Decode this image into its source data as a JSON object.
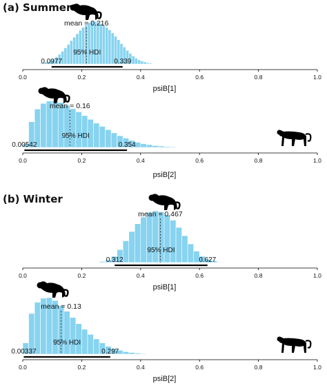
{
  "sections": [
    {
      "title": "(a) Summer"
    },
    {
      "title": "(b) Winter"
    }
  ],
  "icons": [
    "cheetah-sitting-icon",
    "cheetah-walking-icon"
  ],
  "colors": {
    "bar": "#87d3f0",
    "bar_edge": "#ffffff",
    "hdi_line": "#000000",
    "mean_line": "#333333"
  },
  "chart_data": [
    {
      "type": "bar",
      "panel": "summer-psiB1",
      "xlabel": "psiB[1]",
      "xlim": [
        0,
        1
      ],
      "xticks": [
        "0.0",
        "0.2",
        "0.4",
        "0.6",
        "0.8",
        "1.0"
      ],
      "mean_label": "mean = 0.216",
      "mean": 0.216,
      "hdi_label": "95% HDI",
      "hdi": [
        0.0977,
        0.339
      ],
      "hdi_low_label": "0.0977",
      "hdi_high_label": "0.339",
      "bin_start": 0.03,
      "bin_width": 0.01,
      "counts": [
        0.3,
        0.6,
        1,
        2,
        3,
        5,
        8,
        12,
        17,
        23,
        30,
        38,
        46,
        55,
        63,
        71,
        79,
        86,
        92,
        97,
        100,
        100,
        98,
        95,
        91,
        86,
        80,
        73,
        65,
        57,
        48,
        40,
        32,
        25,
        19,
        14,
        10,
        7,
        5,
        3,
        2,
        1,
        0.5
      ]
    },
    {
      "type": "bar",
      "panel": "summer-psiB2",
      "xlabel": "psiB[2]",
      "xlim": [
        0,
        1
      ],
      "xticks": [
        "0.0",
        "0.2",
        "0.4",
        "0.6",
        "0.8",
        "1.0"
      ],
      "mean_label": "mean = 0.16",
      "mean": 0.16,
      "hdi_label": "95% HDI",
      "hdi": [
        0.00542,
        0.354
      ],
      "hdi_low_label": "0.00542",
      "hdi_high_label": "0.354",
      "bin_start": 0.0,
      "bin_width": 0.02,
      "counts": [
        8,
        55,
        82,
        94,
        99,
        100,
        96,
        90,
        83,
        76,
        68,
        60,
        52,
        45,
        38,
        31,
        25,
        20,
        15,
        11,
        8,
        6,
        4,
        3,
        2,
        1.5,
        1
      ]
    },
    {
      "type": "bar",
      "panel": "winter-psiB1",
      "xlabel": "psiB[1]",
      "xlim": [
        0,
        1
      ],
      "xticks": [
        "0.0",
        "0.2",
        "0.4",
        "0.6",
        "0.8",
        "1.0"
      ],
      "mean_label": "mean = 0.467",
      "mean": 0.467,
      "hdi_label": "95% HDI",
      "hdi": [
        0.312,
        0.627
      ],
      "hdi_low_label": "0.312",
      "hdi_high_label": "0.627",
      "bin_start": 0.24,
      "bin_width": 0.02,
      "counts": [
        0.5,
        2,
        5,
        12,
        25,
        42,
        60,
        75,
        88,
        97,
        100,
        98,
        92,
        82,
        68,
        52,
        36,
        22,
        12,
        6,
        3,
        1
      ]
    },
    {
      "type": "bar",
      "panel": "winter-psiB2",
      "xlabel": "psiB[2]",
      "xlim": [
        0,
        1
      ],
      "xticks": [
        "0.0",
        "0.2",
        "0.4",
        "0.6",
        "0.8",
        "1.0"
      ],
      "mean_label": "mean = 0.13",
      "mean": 0.13,
      "hdi_label": "95% HDI",
      "hdi": [
        0.00337,
        0.297
      ],
      "hdi_low_label": "0.00337",
      "hdi_high_label": "0.297",
      "bin_start": 0.0,
      "bin_width": 0.02,
      "counts": [
        20,
        72,
        92,
        99,
        100,
        95,
        86,
        76,
        65,
        54,
        44,
        35,
        27,
        20,
        14,
        10,
        7,
        4.5,
        3,
        2,
        1.2,
        0.6
      ]
    }
  ]
}
